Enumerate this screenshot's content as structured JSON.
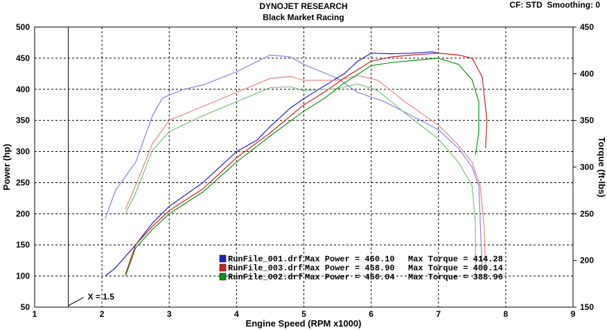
{
  "header": {
    "title": "DYNOJET RESEARCH",
    "subtitle": "Black Market Racing",
    "settings": "CF: STD  Smoothing: 0"
  },
  "chart_data": {
    "type": "line",
    "title": "DYNOJET RESEARCH",
    "subtitle": "Black Market Racing",
    "xlabel": "Engine Speed (RPM x1000)",
    "ylabel_left": "Power (hp)",
    "ylabel_right": "Torque (ft-lbs)",
    "xlim": [
      1,
      9
    ],
    "ylim_left": [
      50,
      500
    ],
    "ylim_right": [
      150,
      450
    ],
    "x_ticks": [
      "1",
      "2",
      "3",
      "4",
      "5",
      "6",
      "7",
      "8",
      "9"
    ],
    "y_left_ticks": [
      "50",
      "100",
      "150",
      "200",
      "250",
      "300",
      "350",
      "400",
      "450",
      "500"
    ],
    "y_right_ticks": [
      "150",
      "200",
      "250",
      "300",
      "350",
      "400",
      "450"
    ],
    "grid": true,
    "marker_line": {
      "x": 1.5,
      "label": "X = 1.5"
    },
    "legend_position": "bottom-center",
    "series": [
      {
        "name": "RunFile_001.drf",
        "max_power_label": "Max Power = 460.10",
        "max_torque_label": "Max Torque = 414.28",
        "color": "#2020c8",
        "power": [
          [
            2.05,
            100
          ],
          [
            2.2,
            113
          ],
          [
            2.5,
            150
          ],
          [
            2.75,
            185
          ],
          [
            3.0,
            212
          ],
          [
            3.5,
            250
          ],
          [
            4.0,
            300
          ],
          [
            4.3,
            318
          ],
          [
            4.5,
            340
          ],
          [
            4.8,
            370
          ],
          [
            5.0,
            385
          ],
          [
            5.3,
            405
          ],
          [
            5.6,
            425
          ],
          [
            5.8,
            445
          ],
          [
            6.0,
            458
          ],
          [
            6.3,
            457
          ],
          [
            6.6,
            458
          ],
          [
            6.9,
            460
          ],
          [
            7.0,
            458
          ]
        ],
        "torque": [
          [
            2.05,
            245
          ],
          [
            2.2,
            275
          ],
          [
            2.5,
            305
          ],
          [
            2.75,
            355
          ],
          [
            2.9,
            374
          ],
          [
            3.2,
            383
          ],
          [
            3.5,
            388
          ],
          [
            4.0,
            402
          ],
          [
            4.5,
            420
          ],
          [
            4.8,
            418
          ],
          [
            5.0,
            410
          ],
          [
            5.5,
            395
          ],
          [
            5.8,
            380
          ],
          [
            6.2,
            370
          ],
          [
            6.6,
            355
          ],
          [
            7.0,
            340
          ],
          [
            7.3,
            320
          ],
          [
            7.5,
            300
          ],
          [
            7.6,
            280
          ],
          [
            7.65,
            190
          ]
        ]
      },
      {
        "name": "RunFile_003.drf",
        "max_power_label": "Max Power = 458.90",
        "max_torque_label": "Max Torque = 400.14",
        "color": "#cc2020",
        "power": [
          [
            2.35,
            103
          ],
          [
            2.5,
            150
          ],
          [
            2.75,
            180
          ],
          [
            3.0,
            205
          ],
          [
            3.5,
            240
          ],
          [
            4.0,
            290
          ],
          [
            4.5,
            330
          ],
          [
            5.0,
            375
          ],
          [
            5.3,
            395
          ],
          [
            5.6,
            418
          ],
          [
            6.0,
            445
          ],
          [
            6.3,
            452
          ],
          [
            6.6,
            455
          ],
          [
            7.0,
            458
          ],
          [
            7.3,
            455
          ],
          [
            7.5,
            450
          ],
          [
            7.65,
            420
          ],
          [
            7.72,
            350
          ],
          [
            7.7,
            305
          ]
        ],
        "torque": [
          [
            2.35,
            255
          ],
          [
            2.5,
            280
          ],
          [
            2.75,
            325
          ],
          [
            3.0,
            350
          ],
          [
            3.5,
            365
          ],
          [
            4.0,
            380
          ],
          [
            4.5,
            395
          ],
          [
            4.8,
            397
          ],
          [
            5.0,
            393
          ],
          [
            5.5,
            393
          ],
          [
            5.8,
            398
          ],
          [
            6.1,
            393
          ],
          [
            6.5,
            370
          ],
          [
            7.0,
            345
          ],
          [
            7.3,
            323
          ],
          [
            7.5,
            305
          ],
          [
            7.62,
            280
          ],
          [
            7.68,
            235
          ],
          [
            7.7,
            188
          ]
        ]
      },
      {
        "name": "RunFile_002.drf",
        "max_power_label": "Max Power = 450.04",
        "max_torque_label": "Max Torque = 388.96",
        "color": "#109010",
        "power": [
          [
            2.35,
            100
          ],
          [
            2.5,
            145
          ],
          [
            2.75,
            175
          ],
          [
            3.0,
            200
          ],
          [
            3.5,
            235
          ],
          [
            4.0,
            283
          ],
          [
            4.5,
            325
          ],
          [
            5.0,
            365
          ],
          [
            5.3,
            385
          ],
          [
            5.6,
            410
          ],
          [
            6.0,
            438
          ],
          [
            6.3,
            443
          ],
          [
            6.6,
            446
          ],
          [
            7.0,
            450
          ],
          [
            7.3,
            440
          ],
          [
            7.5,
            415
          ],
          [
            7.6,
            380
          ],
          [
            7.6,
            330
          ],
          [
            7.55,
            295
          ]
        ],
        "torque": [
          [
            2.35,
            250
          ],
          [
            2.5,
            272
          ],
          [
            2.75,
            318
          ],
          [
            3.0,
            338
          ],
          [
            3.5,
            355
          ],
          [
            4.0,
            370
          ],
          [
            4.5,
            385
          ],
          [
            4.8,
            386
          ],
          [
            5.0,
            382
          ],
          [
            5.5,
            384
          ],
          [
            5.8,
            389
          ],
          [
            6.1,
            382
          ],
          [
            6.5,
            358
          ],
          [
            7.0,
            330
          ],
          [
            7.3,
            305
          ],
          [
            7.5,
            280
          ],
          [
            7.55,
            240
          ],
          [
            7.55,
            185
          ]
        ]
      }
    ]
  }
}
